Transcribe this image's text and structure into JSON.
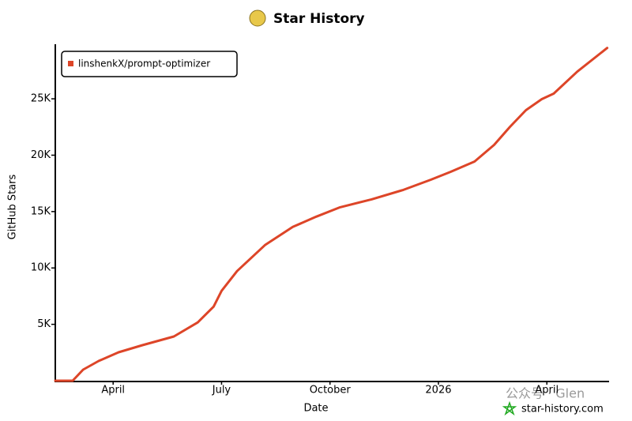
{
  "chart_data": {
    "type": "line",
    "title": "Star History",
    "x_label": "Date",
    "y_label": "GitHub Stars",
    "x": [
      1.4,
      1.88,
      2.17,
      2.6,
      3.15,
      3.81,
      4.68,
      5.34,
      5.78,
      6.0,
      6.43,
      7.2,
      7.97,
      8.62,
      9.28,
      10.15,
      11.03,
      11.79,
      12.34,
      13.0,
      13.54,
      13.98,
      14.42,
      14.86,
      15.19,
      15.84,
      16.67
    ],
    "series": [
      {
        "name": "linshenkX/prompt-optimizer",
        "color": "#dd4528",
        "values": [
          0,
          0,
          980,
          1750,
          2520,
          3150,
          3920,
          5170,
          6570,
          7970,
          9720,
          12030,
          13640,
          14550,
          15380,
          16080,
          16920,
          17830,
          18530,
          19440,
          20910,
          22520,
          23990,
          24970,
          25460,
          27410,
          29510
        ]
      }
    ],
    "xlim": [
      1.4,
      16.7
    ],
    "xticks": [
      {
        "value": 3,
        "label": "April"
      },
      {
        "value": 6,
        "label": "July"
      },
      {
        "value": 9,
        "label": "October"
      },
      {
        "value": 12,
        "label": "2026"
      },
      {
        "value": 15,
        "label": "April"
      }
    ],
    "ylim": [
      0,
      29700
    ],
    "yticks": [
      {
        "value": 5000,
        "label": "5K"
      },
      {
        "value": 10000,
        "label": "10K"
      },
      {
        "value": 15000,
        "label": "15K"
      },
      {
        "value": 20000,
        "label": "20K"
      },
      {
        "value": 25000,
        "label": "25K"
      }
    ],
    "legend": "top-left",
    "annotations": [
      "公众号 · Glen",
      "star-history.com"
    ]
  }
}
